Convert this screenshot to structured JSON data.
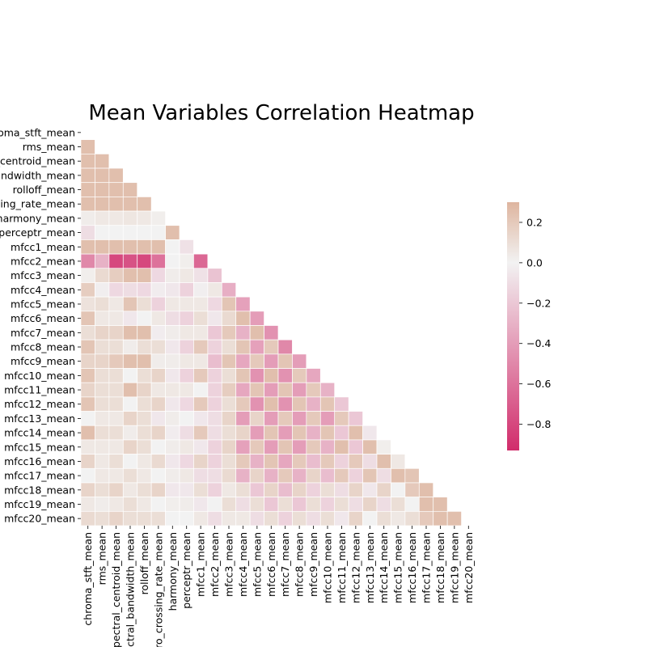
{
  "chart_data": {
    "type": "heatmap",
    "title": "Mean Variables Correlation Heatmap",
    "xlabel": "",
    "ylabel": "",
    "mask": "upper-triangle-and-diagonal",
    "variables": [
      "chroma_stft_mean",
      "rms_mean",
      "spectral_centroid_mean",
      "spectral_bandwidth_mean",
      "rolloff_mean",
      "zero_crossing_rate_mean",
      "harmony_mean",
      "perceptr_mean",
      "mfcc1_mean",
      "mfcc2_mean",
      "mfcc3_mean",
      "mfcc4_mean",
      "mfcc5_mean",
      "mfcc6_mean",
      "mfcc7_mean",
      "mfcc8_mean",
      "mfcc9_mean",
      "mfcc10_mean",
      "mfcc11_mean",
      "mfcc12_mean",
      "mfcc13_mean",
      "mfcc14_mean",
      "mfcc15_mean",
      "mfcc16_mean",
      "mfcc17_mean",
      "mfcc18_mean",
      "mfcc19_mean",
      "mfcc20_mean"
    ],
    "values": [
      [],
      [
        0.25
      ],
      [
        0.25,
        0.25
      ],
      [
        0.25,
        0.25,
        0.25
      ],
      [
        0.25,
        0.25,
        0.25,
        0.25
      ],
      [
        0.25,
        0.25,
        0.25,
        0.25,
        0.25
      ],
      [
        0.03,
        0.05,
        0.05,
        0.06,
        0.05,
        0.02
      ],
      [
        -0.1,
        0.0,
        0.0,
        0.0,
        0.0,
        0.0,
        0.25
      ],
      [
        0.25,
        0.25,
        0.25,
        0.25,
        0.25,
        0.25,
        0.0,
        -0.08
      ],
      [
        -0.5,
        -0.3,
        -0.8,
        -0.75,
        -0.8,
        -0.6,
        0.0,
        0.02,
        -0.65
      ],
      [
        0.02,
        0.12,
        0.18,
        0.25,
        0.25,
        -0.12,
        0.03,
        0.05,
        -0.08,
        -0.22
      ],
      [
        0.18,
        -0.02,
        -0.12,
        -0.1,
        -0.12,
        -0.03,
        -0.05,
        -0.15,
        -0.02,
        0.05,
        -0.32
      ],
      [
        0.08,
        0.1,
        0.05,
        0.22,
        0.1,
        -0.15,
        0.05,
        0.05,
        0.05,
        -0.12,
        0.22,
        -0.38
      ],
      [
        0.22,
        0.05,
        0.05,
        -0.05,
        0.0,
        0.05,
        -0.1,
        -0.15,
        0.1,
        -0.05,
        0.12,
        0.25,
        -0.4
      ],
      [
        0.1,
        0.15,
        0.15,
        0.25,
        0.25,
        -0.03,
        0.03,
        0.05,
        0.05,
        -0.2,
        0.2,
        -0.3,
        0.25,
        -0.45
      ],
      [
        0.22,
        0.1,
        0.1,
        0.03,
        0.1,
        0.1,
        -0.05,
        -0.15,
        0.2,
        -0.15,
        0.1,
        0.22,
        -0.38,
        0.2,
        -0.5
      ],
      [
        0.15,
        0.15,
        0.2,
        0.25,
        0.25,
        0.03,
        0.03,
        0.05,
        0.05,
        -0.25,
        0.22,
        -0.35,
        0.2,
        -0.4,
        0.22,
        -0.4
      ],
      [
        0.22,
        0.1,
        0.1,
        0.0,
        0.1,
        0.15,
        -0.05,
        -0.15,
        0.2,
        -0.15,
        0.1,
        0.22,
        -0.45,
        0.25,
        -0.45,
        0.2,
        -0.35
      ],
      [
        0.15,
        0.1,
        0.1,
        0.25,
        0.15,
        0.05,
        0.05,
        0.05,
        0.0,
        -0.15,
        0.18,
        -0.35,
        0.22,
        -0.4,
        0.22,
        -0.4,
        0.2,
        -0.3
      ],
      [
        0.22,
        0.1,
        0.1,
        0.0,
        0.1,
        0.15,
        -0.05,
        -0.12,
        0.2,
        -0.15,
        0.1,
        0.2,
        -0.45,
        0.25,
        -0.45,
        0.22,
        -0.3,
        0.22,
        -0.2
      ],
      [
        0.0,
        0.05,
        0.05,
        0.15,
        0.1,
        -0.05,
        0.03,
        0.0,
        -0.05,
        -0.1,
        0.15,
        -0.4,
        0.15,
        -0.4,
        0.2,
        -0.4,
        0.2,
        -0.4,
        0.2,
        -0.2
      ],
      [
        0.25,
        0.1,
        0.1,
        0.03,
        0.1,
        0.15,
        -0.03,
        -0.1,
        0.2,
        -0.1,
        0.1,
        0.15,
        -0.4,
        0.22,
        -0.4,
        0.22,
        -0.3,
        0.22,
        -0.2,
        0.25,
        -0.05
      ],
      [
        0.05,
        0.05,
        0.05,
        0.15,
        0.1,
        0.0,
        0.03,
        0.05,
        -0.05,
        -0.15,
        0.15,
        -0.38,
        0.2,
        -0.4,
        0.22,
        -0.4,
        0.2,
        -0.3,
        0.25,
        -0.2,
        0.25,
        0.02
      ],
      [
        0.15,
        0.05,
        0.1,
        0.0,
        0.05,
        0.12,
        -0.05,
        -0.12,
        0.15,
        -0.15,
        0.1,
        0.2,
        -0.3,
        0.22,
        -0.35,
        0.2,
        -0.25,
        0.2,
        -0.15,
        0.2,
        -0.1,
        0.25,
        0.05
      ],
      [
        0.0,
        0.05,
        0.05,
        0.1,
        0.05,
        0.0,
        0.03,
        0.05,
        -0.1,
        -0.1,
        0.12,
        -0.3,
        0.15,
        -0.3,
        0.2,
        -0.3,
        0.15,
        -0.25,
        0.2,
        -0.15,
        0.22,
        -0.1,
        0.25,
        0.22
      ],
      [
        0.15,
        0.1,
        0.15,
        0.05,
        0.1,
        0.15,
        -0.05,
        -0.05,
        0.1,
        -0.15,
        0.05,
        0.1,
        -0.2,
        0.15,
        -0.25,
        0.15,
        -0.15,
        0.1,
        -0.1,
        0.15,
        -0.05,
        0.15,
        0.0,
        0.2,
        0.25
      ],
      [
        0.05,
        0.03,
        0.05,
        0.1,
        0.05,
        0.0,
        0.02,
        0.03,
        -0.05,
        0.0,
        0.1,
        -0.1,
        0.1,
        -0.2,
        0.1,
        -0.2,
        0.1,
        -0.15,
        0.1,
        -0.1,
        0.15,
        -0.1,
        0.1,
        0.0,
        0.25,
        0.25
      ],
      [
        0.12,
        0.1,
        0.15,
        0.1,
        0.1,
        0.1,
        0.0,
        0.0,
        0.05,
        -0.1,
        0.05,
        0.05,
        -0.1,
        0.1,
        -0.15,
        0.1,
        -0.1,
        0.1,
        -0.05,
        0.15,
        0.0,
        0.1,
        0.05,
        0.1,
        0.2,
        0.25,
        0.25
      ]
    ],
    "colorbar": {
      "ticks": [
        0.2,
        0.0,
        -0.2,
        -0.4,
        -0.6,
        -0.8
      ],
      "tick_labels": [
        "0.2",
        "0.0",
        "−0.2",
        "−0.4",
        "−0.6",
        "−0.8"
      ],
      "vmin": -0.93,
      "vmax": 0.3,
      "colors": {
        "low": "#d12c6b",
        "mid": "#f2f2f2",
        "high": "#deb59f"
      }
    },
    "grid": true,
    "legend": "colorbar-right"
  }
}
